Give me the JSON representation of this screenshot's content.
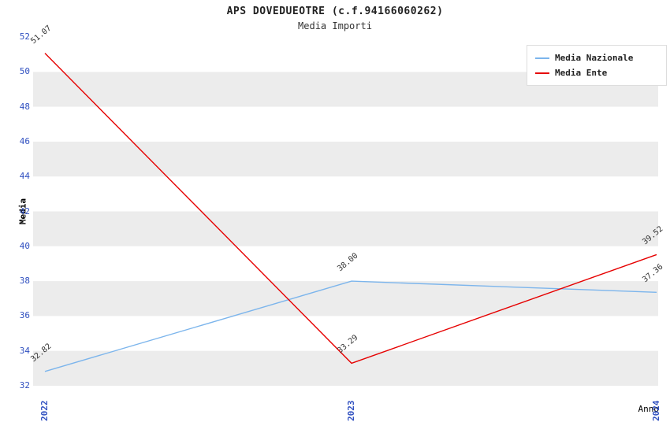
{
  "chart_data": {
    "type": "line",
    "title": "APS DOVEDUEOTRE (c.f.94166060262)",
    "subtitle": "Media Importi",
    "xlabel": "Anno",
    "ylabel": "Media",
    "categories": [
      "2022",
      "2023",
      "2024"
    ],
    "series": [
      {
        "name": "Media Nazionale",
        "color": "#7cb5ec",
        "values": [
          32.82,
          38.0,
          37.36
        ]
      },
      {
        "name": "Media Ente",
        "color": "#e60000",
        "values": [
          51.07,
          33.29,
          39.52
        ]
      }
    ],
    "ylim": [
      32,
      52
    ],
    "ytick_step": 2,
    "grid": "alternating-bands",
    "legend_position": "top-right",
    "colors": {
      "band": "#ececec",
      "tick_label": "#3050c0",
      "point_label": "#333333"
    }
  }
}
